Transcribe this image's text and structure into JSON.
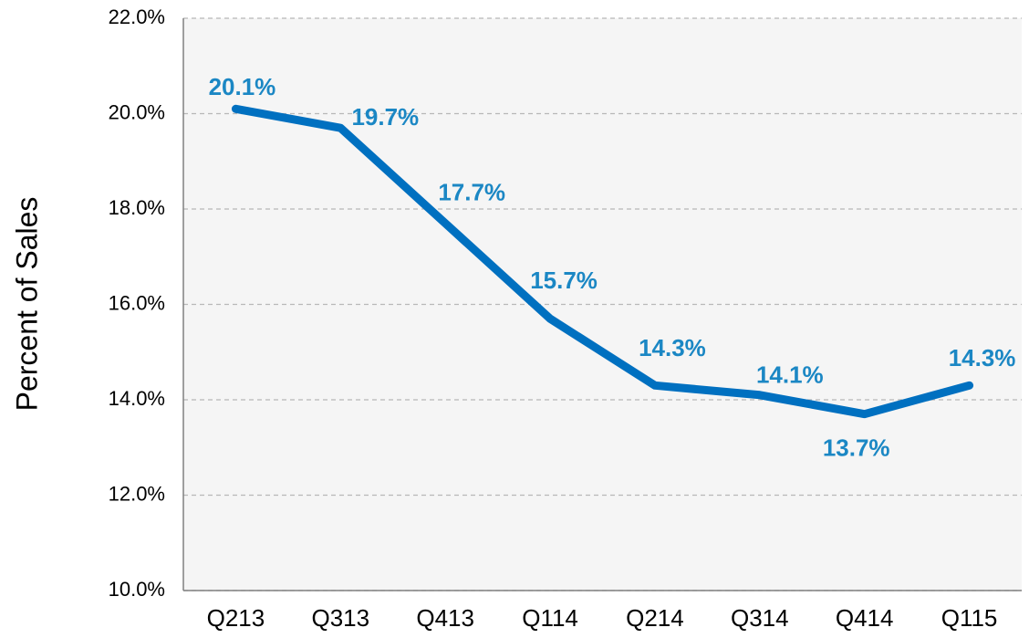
{
  "chart_data": {
    "type": "line",
    "y_label": "Percent of Sales",
    "categories": [
      "Q213",
      "Q313",
      "Q413",
      "Q114",
      "Q214",
      "Q314",
      "Q414",
      "Q115"
    ],
    "series": [
      {
        "name": "Percent of Sales",
        "color": "#0070c0",
        "values": [
          20.1,
          19.7,
          17.7,
          15.7,
          14.3,
          14.1,
          13.7,
          14.3
        ],
        "value_labels": [
          "20.1%",
          "19.7%",
          "17.7%",
          "15.7%",
          "14.3%",
          "14.1%",
          "13.7%",
          "14.3%"
        ]
      }
    ],
    "ylim": [
      10,
      22
    ],
    "yticks": [
      {
        "value": 10,
        "label": "10.0%"
      },
      {
        "value": 12,
        "label": "12.0%"
      },
      {
        "value": 14,
        "label": "14.0%"
      },
      {
        "value": 16,
        "label": "16.0%"
      },
      {
        "value": 18,
        "label": "18.0%"
      },
      {
        "value": 20,
        "label": "20.0%"
      },
      {
        "value": 22,
        "label": "22.0%"
      }
    ],
    "grid": true
  }
}
